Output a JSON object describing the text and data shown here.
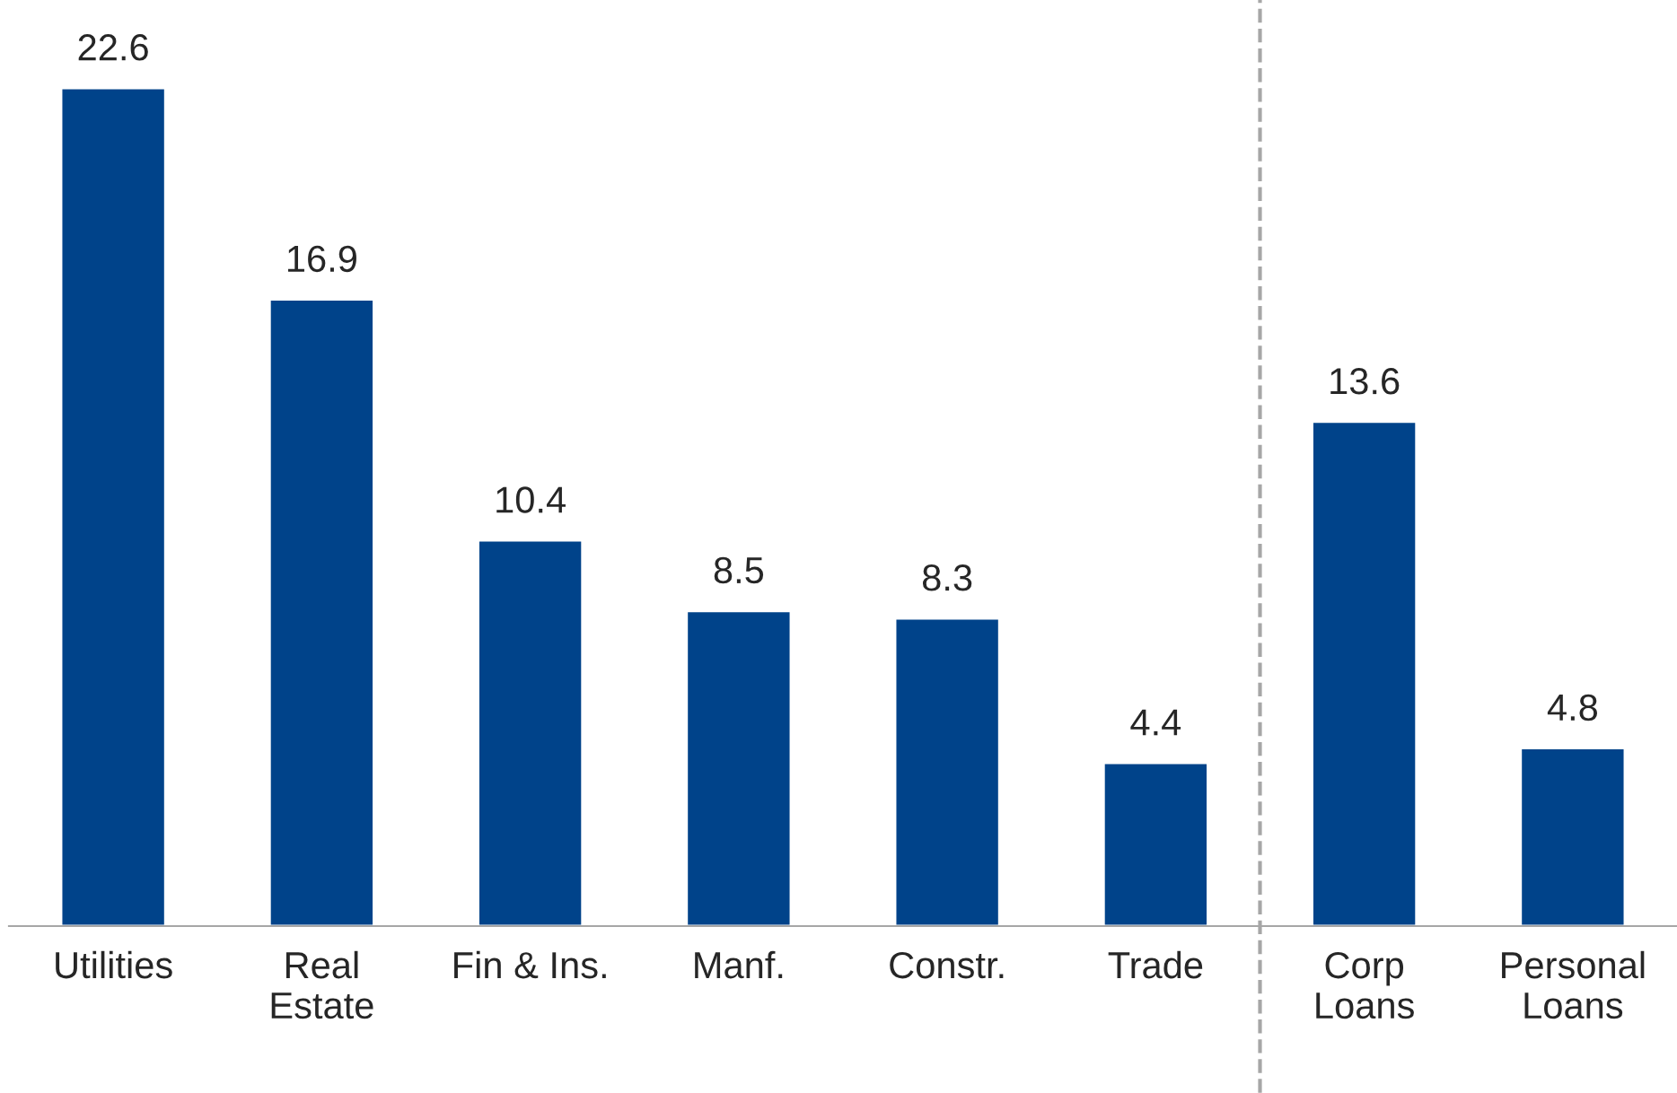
{
  "chart_data": {
    "type": "bar",
    "categories": [
      "Utilities",
      "Real\nEstate",
      "Fin & Ins.",
      "Manf.",
      "Constr.",
      "Trade",
      "Corp\nLoans",
      "Personal\nLoans"
    ],
    "values": [
      22.6,
      16.9,
      10.4,
      8.5,
      8.3,
      4.4,
      13.6,
      4.8
    ],
    "color": "#00438a",
    "data_labels": true,
    "grid": false,
    "legend": false,
    "tick_labels": "x"
  }
}
